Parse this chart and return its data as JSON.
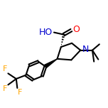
{
  "background_color": "#ffffff",
  "bond_color": "#000000",
  "bond_width": 1.5,
  "figsize": [
    1.52,
    1.52
  ],
  "dpi": 100,
  "xlim": [
    0,
    1
  ],
  "ylim": [
    0,
    1
  ],
  "O_color": "#ff0000",
  "N_color": "#0000cd",
  "F_color": "#ffa500",
  "HO_color": "#0000cd",
  "font_size_large": 9,
  "font_size_small": 8
}
